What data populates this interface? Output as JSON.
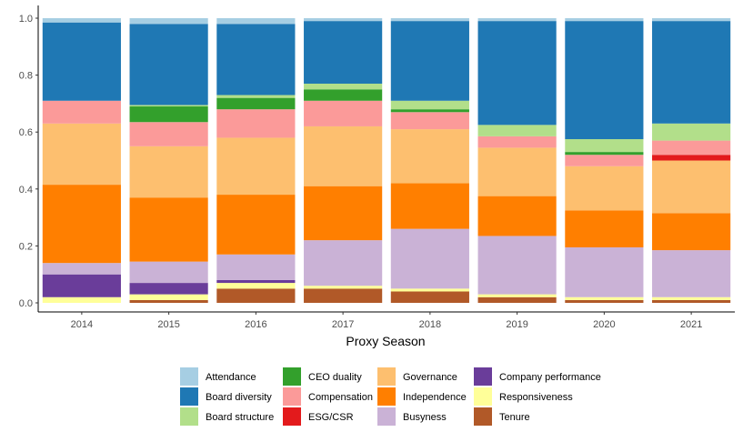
{
  "chart_data": {
    "type": "bar",
    "stacked": true,
    "xlabel": "Proxy Season",
    "ylabel": "",
    "ylim": [
      0,
      1
    ],
    "yticks": [
      "0.0",
      "0.2",
      "0.4",
      "0.6",
      "0.8",
      "1.0"
    ],
    "grid": false,
    "legend_position": "bottom",
    "categories": [
      "2014",
      "2015",
      "2016",
      "2017",
      "2018",
      "2019",
      "2020",
      "2021"
    ],
    "series": [
      {
        "name": "Tenure",
        "color": "#b15928",
        "values": [
          0.0,
          0.01,
          0.05,
          0.05,
          0.04,
          0.02,
          0.01,
          0.01
        ]
      },
      {
        "name": "Responsiveness",
        "color": "#ffff99",
        "values": [
          0.02,
          0.02,
          0.02,
          0.01,
          0.01,
          0.01,
          0.01,
          0.01
        ]
      },
      {
        "name": "Company performance",
        "color": "#6a3d9a",
        "values": [
          0.08,
          0.04,
          0.01,
          0.0,
          0.0,
          0.0,
          0.0,
          0.0
        ]
      },
      {
        "name": "Busyness",
        "color": "#cab2d6",
        "values": [
          0.04,
          0.075,
          0.09,
          0.16,
          0.21,
          0.205,
          0.175,
          0.165
        ]
      },
      {
        "name": "Independence",
        "color": "#ff7f00",
        "values": [
          0.275,
          0.225,
          0.21,
          0.19,
          0.16,
          0.14,
          0.13,
          0.13
        ]
      },
      {
        "name": "Governance",
        "color": "#fdbf6f",
        "values": [
          0.215,
          0.18,
          0.2,
          0.21,
          0.19,
          0.17,
          0.155,
          0.185
        ]
      },
      {
        "name": "ESG/CSR",
        "color": "#e31a1c",
        "values": [
          0.0,
          0.0,
          0.0,
          0.0,
          0.0,
          0.0,
          0.0,
          0.02
        ]
      },
      {
        "name": "Compensation",
        "color": "#fb9a99",
        "values": [
          0.08,
          0.085,
          0.1,
          0.09,
          0.06,
          0.04,
          0.04,
          0.05
        ]
      },
      {
        "name": "CEO duality",
        "color": "#33a02c",
        "values": [
          0.0,
          0.055,
          0.04,
          0.04,
          0.01,
          0.0,
          0.01,
          0.0
        ]
      },
      {
        "name": "Board structure",
        "color": "#b2df8a",
        "values": [
          0.0,
          0.005,
          0.01,
          0.02,
          0.03,
          0.04,
          0.045,
          0.06
        ]
      },
      {
        "name": "Board diversity",
        "color": "#1f78b4",
        "values": [
          0.275,
          0.285,
          0.25,
          0.22,
          0.28,
          0.365,
          0.415,
          0.36
        ]
      },
      {
        "name": "Attendance",
        "color": "#a6cee3",
        "values": [
          0.015,
          0.02,
          0.02,
          0.01,
          0.01,
          0.01,
          0.01,
          0.01
        ]
      }
    ],
    "legend": [
      [
        "Attendance",
        "Board diversity",
        "Board structure"
      ],
      [
        "CEO duality",
        "Compensation",
        "ESG/CSR"
      ],
      [
        "Governance",
        "Independence",
        "Busyness"
      ],
      [
        "Company performance",
        "Responsiveness",
        "Tenure"
      ]
    ]
  }
}
